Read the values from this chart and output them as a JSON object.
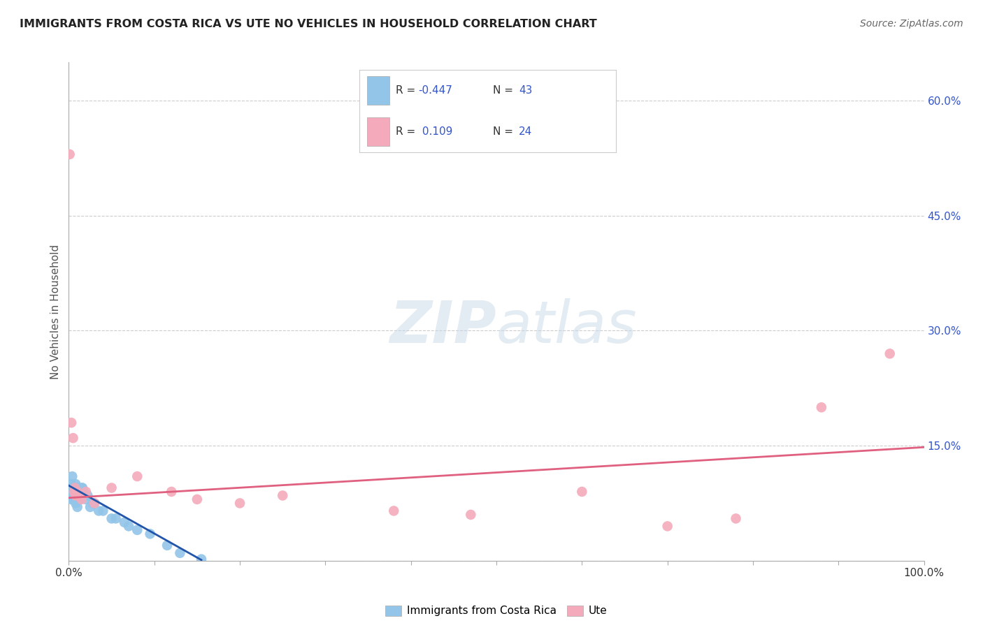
{
  "title": "IMMIGRANTS FROM COSTA RICA VS UTE NO VEHICLES IN HOUSEHOLD CORRELATION CHART",
  "source": "Source: ZipAtlas.com",
  "ylabel": "No Vehicles in Household",
  "xlim": [
    0,
    1.0
  ],
  "ylim": [
    0,
    0.65
  ],
  "xticks": [
    0.0,
    0.1,
    0.2,
    0.3,
    0.4,
    0.5,
    0.6,
    0.7,
    0.8,
    0.9,
    1.0
  ],
  "xticklabels": [
    "0.0%",
    "",
    "",
    "",
    "",
    "",
    "",
    "",
    "",
    "",
    "100.0%"
  ],
  "yticks": [
    0.0,
    0.15,
    0.3,
    0.45,
    0.6
  ],
  "yticklabels": [
    "",
    "15.0%",
    "30.0%",
    "45.0%",
    "60.0%"
  ],
  "blue_color": "#92C5E8",
  "pink_color": "#F4AABB",
  "blue_line_color": "#2255AA",
  "pink_line_color": "#E06080",
  "blue_scatter_x": [
    0.001,
    0.002,
    0.003,
    0.003,
    0.004,
    0.005,
    0.005,
    0.006,
    0.006,
    0.007,
    0.007,
    0.008,
    0.008,
    0.009,
    0.009,
    0.01,
    0.01,
    0.01,
    0.011,
    0.011,
    0.012,
    0.013,
    0.014,
    0.015,
    0.016,
    0.017,
    0.018,
    0.02,
    0.022,
    0.025,
    0.028,
    0.03,
    0.035,
    0.04,
    0.05,
    0.055,
    0.065,
    0.07,
    0.08,
    0.095,
    0.115,
    0.13,
    0.155
  ],
  "blue_scatter_y": [
    0.095,
    0.085,
    0.1,
    0.08,
    0.11,
    0.095,
    0.085,
    0.09,
    0.08,
    0.095,
    0.085,
    0.1,
    0.075,
    0.09,
    0.085,
    0.095,
    0.08,
    0.07,
    0.09,
    0.085,
    0.08,
    0.09,
    0.085,
    0.095,
    0.095,
    0.09,
    0.085,
    0.08,
    0.085,
    0.07,
    0.075,
    0.075,
    0.065,
    0.065,
    0.055,
    0.055,
    0.05,
    0.045,
    0.04,
    0.035,
    0.02,
    0.01,
    0.002
  ],
  "pink_scatter_x": [
    0.001,
    0.003,
    0.005,
    0.006,
    0.007,
    0.008,
    0.01,
    0.012,
    0.015,
    0.02,
    0.03,
    0.05,
    0.08,
    0.12,
    0.15,
    0.2,
    0.25,
    0.38,
    0.47,
    0.6,
    0.7,
    0.78,
    0.88,
    0.96
  ],
  "pink_scatter_y": [
    0.53,
    0.18,
    0.16,
    0.09,
    0.095,
    0.085,
    0.09,
    0.085,
    0.08,
    0.09,
    0.075,
    0.095,
    0.11,
    0.09,
    0.08,
    0.075,
    0.085,
    0.065,
    0.06,
    0.09,
    0.045,
    0.055,
    0.2,
    0.27
  ],
  "blue_trendline_x": [
    0.0,
    0.155
  ],
  "blue_trendline_y": [
    0.098,
    0.001
  ],
  "pink_trendline_x": [
    0.0,
    1.0
  ],
  "pink_trendline_y": [
    0.082,
    0.148
  ],
  "grid_color": "#CCCCCC",
  "bg_color": "#FFFFFF",
  "legend_text_color": "#3355CC",
  "legend_label_color": "#333333",
  "ytick_color": "#3355CC"
}
